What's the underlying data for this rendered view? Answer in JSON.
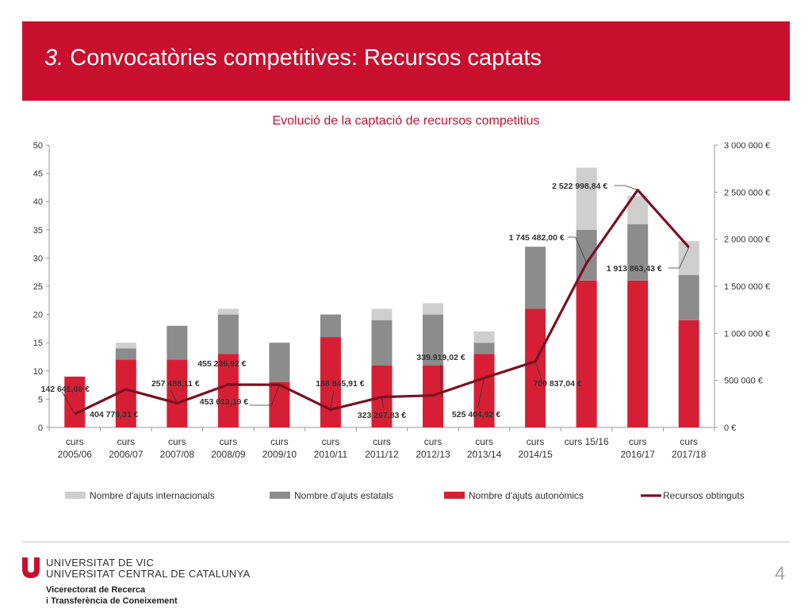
{
  "header": {
    "number": "3.",
    "title": " Convocatòries competitives: Recursos captats"
  },
  "colors": {
    "header_bg": "#c8102e",
    "autonomics": "#d61f35",
    "estatals": "#8c8c8c",
    "internacionals": "#cfcfcf",
    "recursos": "#7a1020"
  },
  "chart_data": {
    "type": "bar",
    "subtype": "stacked bar with line on secondary axis",
    "title": "Evolució de la captació de recursos competitius",
    "categories": [
      [
        "curs",
        "2005/06"
      ],
      [
        "curs",
        "2006/07"
      ],
      [
        "curs",
        "2007/08"
      ],
      [
        "curs",
        "2008/09"
      ],
      [
        "curs",
        "2009/10"
      ],
      [
        "curs",
        "2010/11"
      ],
      [
        "curs",
        "2011/12"
      ],
      [
        "curs",
        "2012/13"
      ],
      [
        "curs",
        "2013/14"
      ],
      [
        "curs",
        "2014/15"
      ],
      [
        "curs 15/16"
      ],
      [
        "curs",
        "2016/17"
      ],
      [
        "curs",
        "2017/18"
      ]
    ],
    "y_left": {
      "min": 0,
      "max": 50,
      "step": 5,
      "ticks": [
        "0",
        "5",
        "10",
        "15",
        "20",
        "25",
        "30",
        "35",
        "40",
        "45",
        "50"
      ]
    },
    "y_right": {
      "min": 0,
      "max": 3000000,
      "step": 500000,
      "ticks": [
        "0 €",
        "500 000 €",
        "1 000 000 €",
        "1 500 000 €",
        "2 000 000 €",
        "2 500 000 €",
        "3 000 000 €"
      ]
    },
    "series": [
      {
        "name": "Nombre d'ajuts autonòmics",
        "values": [
          9,
          12,
          12,
          13,
          8,
          16,
          11,
          11,
          13,
          21,
          26,
          26,
          19
        ]
      },
      {
        "name": "Nombre d'ajuts estatals",
        "values": [
          0,
          2,
          6,
          7,
          7,
          4,
          8,
          9,
          2,
          11,
          9,
          10,
          8
        ]
      },
      {
        "name": "Nombre d'ajuts internacionals",
        "values": [
          0,
          1,
          0,
          1,
          0,
          0,
          2,
          2,
          2,
          0,
          11,
          5,
          6
        ]
      },
      {
        "name": "Recursos obtinguts",
        "axis": "right",
        "values": [
          142641.0,
          404779.31,
          257488.11,
          455236.92,
          453613.19,
          188845.91,
          323267.83,
          339919.02,
          525404.92,
          700837.04,
          1745482.0,
          2522998.84,
          1913863.43
        ]
      }
    ],
    "line_labels": [
      "142 641,00 €",
      "404 779,31 €",
      "257 488,11 €",
      "455 236,92 €",
      "453 613,19 €",
      "188 845,91 €",
      "323 267,83 €",
      "339.919,02 €",
      "525 404,92 €",
      "700 837,04 €",
      "1 745 482,00 €",
      "2 522 998,84 €",
      "1 913 863,43 €"
    ],
    "legend": {
      "position": "bottom",
      "order": [
        "Nombre d'ajuts internacionals",
        "Nombre d'ajuts estatals",
        "Nombre d'ajuts autonòmics",
        "Recursos obtinguts"
      ]
    },
    "grid": false
  },
  "footer": {
    "university_line1": "UNIVERSITAT DE VIC",
    "university_line2": "UNIVERSITAT CENTRAL DE CATALUNYA",
    "vicerectorat_line1": "Vicerectorat de Recerca",
    "vicerectorat_line2": "i Transferència de Coneixement",
    "page_number": "4",
    "logo": "uvic-u-logo"
  }
}
